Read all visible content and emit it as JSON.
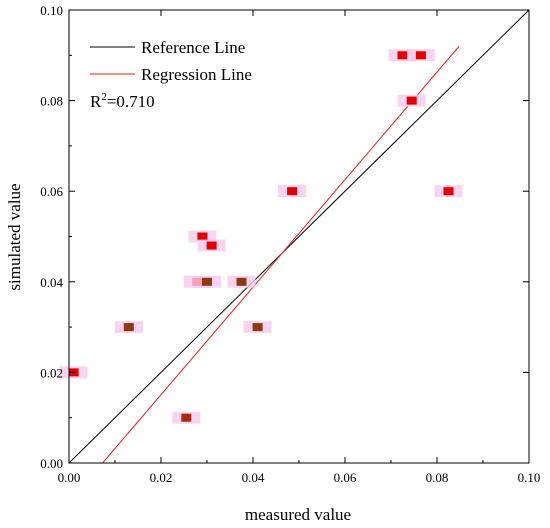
{
  "chart_data": {
    "type": "scatter",
    "title": "",
    "xlabel": "measured value",
    "ylabel": "simulated value",
    "xlim": [
      0.0,
      0.1
    ],
    "ylim": [
      0.0,
      0.1
    ],
    "x_ticks": [
      "0.00",
      "0.02",
      "0.04",
      "0.06",
      "0.08",
      "0.10"
    ],
    "y_ticks": [
      "0.00",
      "0.02",
      "0.04",
      "0.06",
      "0.08",
      "0.10"
    ],
    "grid": false,
    "legend_position": "top-left",
    "r2_label": "R",
    "r2_sup": "2",
    "r2_value": "=0.710",
    "series": [
      {
        "name": "Reference Line",
        "kind": "line",
        "color": "#000000",
        "x": [
          0.0,
          0.1
        ],
        "y": [
          0.0,
          0.1
        ]
      },
      {
        "name": "Regression Line",
        "kind": "line",
        "color": "#e8211c",
        "x": [
          0.0073,
          0.0848
        ],
        "y": [
          0.0,
          0.092
        ]
      }
    ],
    "points": [
      {
        "x": 0.001,
        "y": 0.02,
        "color": "#e00000"
      },
      {
        "x": 0.013,
        "y": 0.03,
        "color": "#8a3a10"
      },
      {
        "x": 0.0255,
        "y": 0.01,
        "color": "#a52a10"
      },
      {
        "x": 0.028,
        "y": 0.04,
        "color": "#e00000"
      },
      {
        "x": 0.03,
        "y": 0.04,
        "color": "#8a3a10"
      },
      {
        "x": 0.029,
        "y": 0.05,
        "color": "#e00000"
      },
      {
        "x": 0.031,
        "y": 0.048,
        "color": "#e00000"
      },
      {
        "x": 0.0375,
        "y": 0.04,
        "color": "#8a3a10"
      },
      {
        "x": 0.041,
        "y": 0.03,
        "color": "#8a3a10"
      },
      {
        "x": 0.0485,
        "y": 0.06,
        "color": "#e00000"
      },
      {
        "x": 0.0725,
        "y": 0.09,
        "color": "#e00000"
      },
      {
        "x": 0.0765,
        "y": 0.09,
        "color": "#e00000"
      },
      {
        "x": 0.0745,
        "y": 0.08,
        "color": "#e00000"
      },
      {
        "x": 0.0825,
        "y": 0.06,
        "color": "#e00000"
      }
    ]
  }
}
